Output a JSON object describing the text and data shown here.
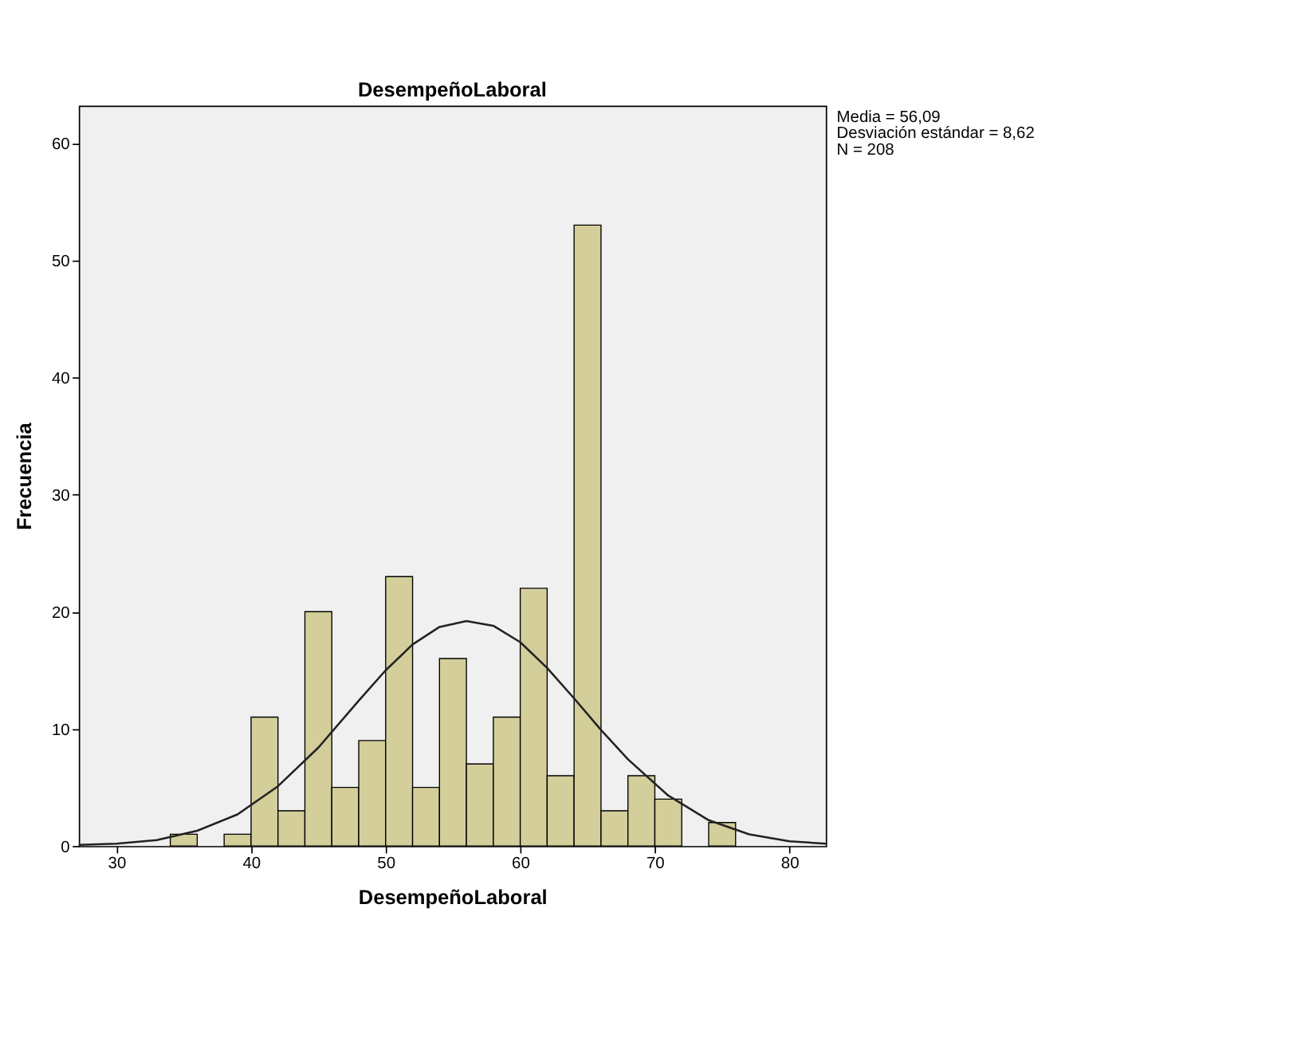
{
  "chart_data": {
    "type": "histogram",
    "title": "DesempeñoLaboral",
    "xlabel": "DesempeñoLaboral",
    "ylabel": "Frecuencia",
    "bins": [
      34,
      36,
      38,
      40,
      42,
      44,
      46,
      48,
      50,
      52,
      54,
      56,
      58,
      60,
      62,
      64,
      66,
      68,
      70,
      72,
      74,
      76
    ],
    "values": [
      1,
      0,
      1,
      11,
      3,
      20,
      5,
      9,
      23,
      5,
      16,
      7,
      11,
      22,
      6,
      53,
      3,
      6,
      4,
      0,
      2
    ],
    "color": "#d3ce9a",
    "series": [
      {
        "type": "line",
        "color": "#222222",
        "x": [
          27.2,
          30,
          33,
          36,
          39,
          42,
          45,
          48,
          50,
          52,
          54,
          56,
          58,
          60,
          62,
          64,
          66,
          68,
          71,
          74,
          77,
          80,
          82.7
        ],
        "values": [
          0.1,
          0.2,
          0.5,
          1.3,
          2.7,
          5.1,
          8.4,
          12.4,
          15.0,
          17.2,
          18.7,
          19.2,
          18.8,
          17.4,
          15.2,
          12.6,
          9.9,
          7.4,
          4.3,
          2.2,
          1.0,
          0.4,
          0.2
        ]
      }
    ],
    "xlim": [
      27.2,
      82.7
    ],
    "ylim": [
      0,
      63.2
    ],
    "xticks": [
      30,
      40,
      50,
      60,
      70,
      80
    ],
    "yticks": [
      0,
      10,
      20,
      30,
      40,
      50,
      60
    ],
    "grid": false,
    "annotations": [
      "Media = 56,09",
      "Desviación estándar = 8,62",
      "N = 208"
    ]
  }
}
